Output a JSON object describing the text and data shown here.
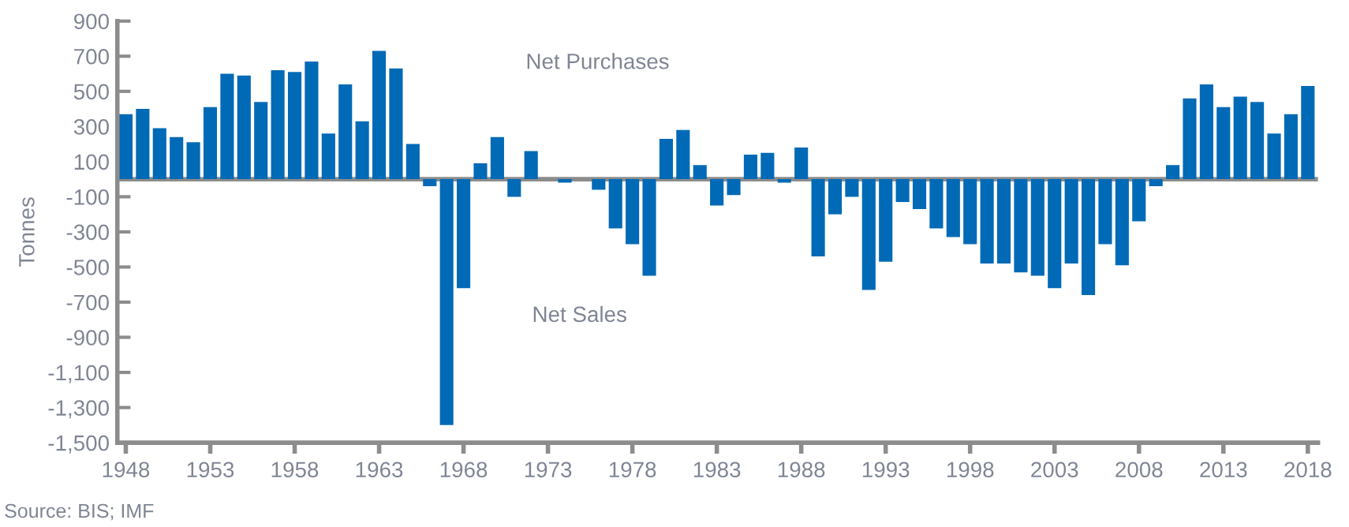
{
  "chart_data": {
    "type": "bar",
    "ylabel": "Tonnes",
    "x": [
      1948,
      1949,
      1950,
      1951,
      1952,
      1953,
      1954,
      1955,
      1956,
      1957,
      1958,
      1959,
      1960,
      1961,
      1962,
      1963,
      1964,
      1965,
      1966,
      1967,
      1968,
      1969,
      1970,
      1971,
      1972,
      1973,
      1974,
      1975,
      1976,
      1977,
      1978,
      1979,
      1980,
      1981,
      1982,
      1983,
      1984,
      1985,
      1986,
      1987,
      1988,
      1989,
      1990,
      1991,
      1992,
      1993,
      1994,
      1995,
      1996,
      1997,
      1998,
      1999,
      2000,
      2001,
      2002,
      2003,
      2004,
      2005,
      2006,
      2007,
      2008,
      2009,
      2010,
      2011,
      2012,
      2013,
      2014,
      2015,
      2016,
      2017,
      2018
    ],
    "series": [
      {
        "color": "#006ab6",
        "values": [
          370,
          400,
          290,
          240,
          210,
          410,
          600,
          590,
          440,
          620,
          610,
          670,
          260,
          540,
          330,
          730,
          630,
          200,
          -40,
          -1400,
          -620,
          90,
          240,
          -100,
          160,
          0,
          -20,
          0,
          -60,
          -280,
          -370,
          -550,
          230,
          280,
          80,
          -150,
          -90,
          140,
          150,
          -20,
          180,
          -440,
          -200,
          -100,
          -630,
          -470,
          -130,
          -170,
          -280,
          -330,
          -370,
          -480,
          -480,
          -530,
          -550,
          -620,
          -480,
          -660,
          -370,
          -490,
          -240,
          -40,
          80,
          460,
          540,
          410,
          470,
          440,
          260,
          370,
          530
        ]
      }
    ],
    "xlim": [
      1947.5,
      2018.6
    ],
    "xticks": [
      1948,
      1953,
      1958,
      1963,
      1968,
      1973,
      1978,
      1983,
      1988,
      1993,
      1998,
      2003,
      2008,
      2013,
      2018
    ],
    "ylim": [
      -1500,
      900
    ],
    "yticks": [
      {
        "value": -1500,
        "label": "-1,500"
      },
      {
        "value": -1300,
        "label": "-1,300"
      },
      {
        "value": -1100,
        "label": "-1,100"
      },
      -900,
      -700,
      -500,
      -300,
      -100,
      100,
      300,
      500,
      700,
      900
    ],
    "ref_lines": [
      {
        "axis": "y",
        "value": 0,
        "color": "#8c8c8c"
      }
    ],
    "grid": false,
    "legend": false,
    "annotations": [
      "Net Purchases",
      "Net Sales",
      "Source: BIS; IMF"
    ]
  }
}
